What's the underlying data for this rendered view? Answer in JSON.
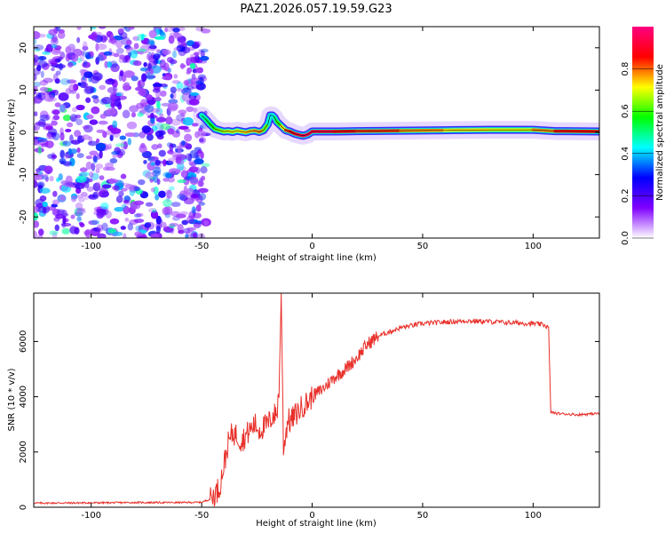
{
  "title": "PAZ1.2026.057.19.59.G23",
  "chart_data": [
    {
      "type": "heatmap",
      "id": "spectrogram",
      "xlabel": "Height of straight line (km)",
      "ylabel": "Frequency (Hz)",
      "xlim": [
        -126,
        130
      ],
      "ylim": [
        -25,
        25
      ],
      "xticks": [
        -100,
        -50,
        0,
        50,
        100
      ],
      "yticks": [
        -20,
        -10,
        0,
        10,
        20
      ],
      "noise_region_x": [
        -126,
        -48
      ],
      "tone_track": {
        "x": [
          -50,
          -48,
          -46,
          -44,
          -42,
          -40,
          -38,
          -36,
          -34,
          -32,
          -30,
          -28,
          -26,
          -24,
          -22,
          -20,
          -19,
          -18,
          -17,
          -16,
          -14,
          -12,
          -10,
          -8,
          -6,
          -4,
          -2,
          0,
          10,
          20,
          40,
          60,
          80,
          100,
          110,
          130
        ],
        "freq_hz": [
          4.0,
          3.0,
          1.8,
          0.8,
          0.5,
          0.2,
          0.3,
          0.1,
          0.4,
          0.2,
          0.0,
          0.3,
          0.4,
          0.1,
          0.5,
          2.0,
          4.0,
          4.0,
          3.5,
          2.5,
          1.5,
          0.5,
          0.2,
          -0.3,
          -0.6,
          -0.8,
          -0.5,
          0.2,
          0.2,
          0.3,
          0.4,
          0.5,
          0.6,
          0.6,
          0.3,
          0.2
        ],
        "amplitude": [
          0.45,
          0.5,
          0.55,
          0.6,
          0.65,
          0.65,
          0.7,
          0.7,
          0.7,
          0.72,
          0.75,
          0.75,
          0.75,
          0.78,
          0.78,
          0.5,
          0.4,
          0.4,
          0.45,
          0.55,
          0.65,
          0.8,
          0.85,
          0.9,
          0.92,
          0.95,
          0.95,
          0.95,
          0.9,
          0.85,
          0.8,
          0.75,
          0.7,
          0.7,
          0.85,
          0.85
        ]
      },
      "colorbar": {
        "label": "Normalized spectral amplitude",
        "ticks": [
          0.0,
          0.2,
          0.4,
          0.6,
          0.8
        ],
        "tick_labels": [
          "0.0",
          "0.2",
          "0.4",
          "0.6",
          "0.8"
        ],
        "range": [
          0,
          1
        ],
        "colors": [
          "#ffffff",
          "#8000ff",
          "#0000ff",
          "#00ffff",
          "#00ff00",
          "#ffff00",
          "#ff0000",
          "#ff0080"
        ]
      },
      "color": "#8020ff"
    },
    {
      "type": "line",
      "id": "snr",
      "xlabel": "Height of straight line (km)",
      "ylabel": "SNR (10 * v/v)",
      "xlim": [
        -126,
        130
      ],
      "ylim": [
        0,
        7750
      ],
      "xticks": [
        -100,
        -50,
        0,
        50,
        100
      ],
      "yticks": [
        0,
        2000,
        4000,
        6000
      ],
      "color": "#e8302a",
      "series": [
        {
          "name": "SNR",
          "x": [
            -126,
            -100,
            -80,
            -60,
            -50,
            -46,
            -42,
            -40,
            -38,
            -36,
            -34,
            -32,
            -30,
            -28,
            -26,
            -24,
            -22,
            -20,
            -18,
            -16,
            -15,
            -14,
            -13,
            -12,
            -11,
            -10,
            -8,
            -6,
            -4,
            -2,
            0,
            5,
            10,
            15,
            20,
            25,
            30,
            40,
            50,
            60,
            70,
            80,
            90,
            100,
            105,
            107,
            108,
            110,
            120,
            130
          ],
          "y": [
            150,
            160,
            170,
            170,
            180,
            300,
            700,
            1500,
            2300,
            2700,
            2600,
            2400,
            2600,
            2800,
            3000,
            2800,
            2900,
            3000,
            3300,
            3400,
            4200,
            7750,
            2200,
            2600,
            3200,
            3100,
            3300,
            3500,
            3700,
            3800,
            4000,
            4300,
            4700,
            5000,
            5400,
            5900,
            6200,
            6500,
            6650,
            6700,
            6750,
            6720,
            6680,
            6650,
            6600,
            6500,
            3450,
            3400,
            3350,
            3400
          ]
        }
      ]
    }
  ]
}
